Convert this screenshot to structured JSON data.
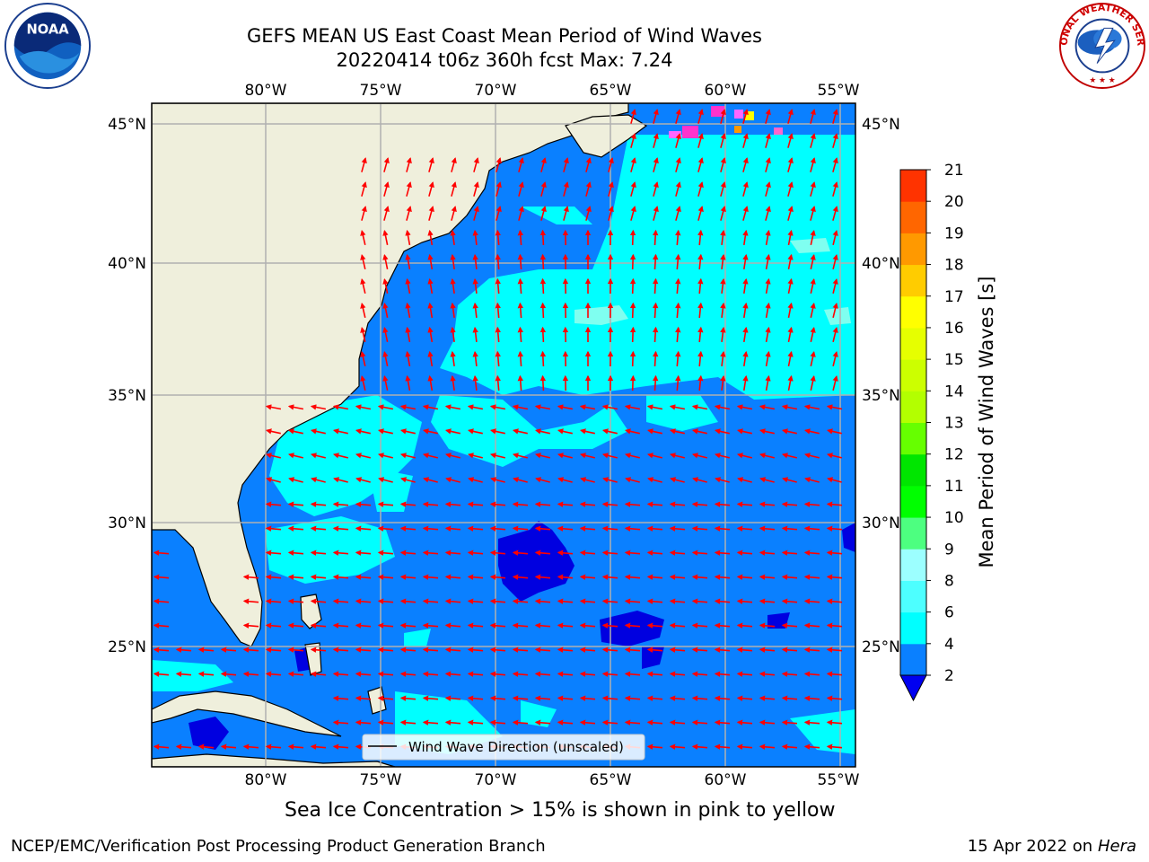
{
  "title": {
    "line1": "GEFS MEAN US East Coast Mean Period of Wind Waves",
    "line2": "20220414 t06z 360h fcst   Max: 7.24"
  },
  "logos": {
    "left": {
      "icon": "noaa-logo",
      "text": "NOAA"
    },
    "right": {
      "icon": "nws-logo",
      "text": "NATIONAL WEATHER SERVICE"
    }
  },
  "map": {
    "lon_labels": [
      "80°W",
      "75°W",
      "70°W",
      "65°W",
      "60°W",
      "55°W"
    ],
    "lat_labels": [
      "45°N",
      "40°N",
      "35°N",
      "30°N",
      "25°N"
    ],
    "legend_label": "Wind Wave Direction (unscaled)",
    "colors": {
      "land": "#efefdc",
      "ocean_2_4": "#0a80ff",
      "ocean_4_6": "#00ffff",
      "ocean_lt_2": "#0000e0",
      "arrow": "#ff0000",
      "grid": "#b0b0b0"
    }
  },
  "colorbar": {
    "label": "Mean Period of Wind Waves [s]",
    "ticks": [
      "2",
      "4",
      "6",
      "8",
      "9",
      "10",
      "11",
      "12",
      "13",
      "14",
      "15",
      "16",
      "17",
      "18",
      "19",
      "20",
      "21"
    ],
    "colors": [
      "#0a80ff",
      "#00ffff",
      "#4dffff",
      "#9cffff",
      "#4dff80",
      "#00ff00",
      "#00e600",
      "#66ff00",
      "#b3ff00",
      "#ccff00",
      "#e6ff00",
      "#ffff00",
      "#ffcc00",
      "#ff9900",
      "#ff6600",
      "#ff3300",
      "#ff0000"
    ],
    "underflow_color": "#0000f0"
  },
  "footer": {
    "sea_ice_note": "Sea Ice Concentration > 15% is shown in pink to yellow",
    "credit": "NCEP/EMC/Verification Post Processing Product Generation Branch",
    "date": "15 Apr 2022 on",
    "machine": "Hera"
  }
}
